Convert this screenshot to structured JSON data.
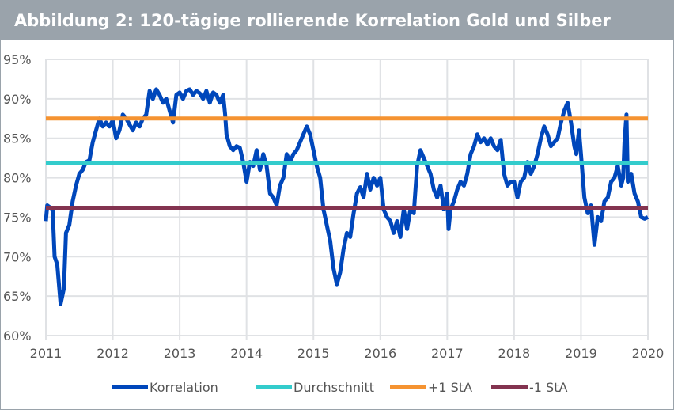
{
  "title": "Abbildung 2: 120-tägige rollierende Korrelation Gold und Silber",
  "chart_data": {
    "type": "line",
    "title": "Abbildung 2: 120-tägige rollierende Korrelation Gold und Silber",
    "xlim": [
      2011,
      2020
    ],
    "ylim": [
      60,
      95
    ],
    "x_ticks": [
      "2011",
      "2012",
      "2013",
      "2014",
      "2015",
      "2016",
      "2017",
      "2018",
      "2019",
      "2020"
    ],
    "y_ticks": [
      "60%",
      "65%",
      "70%",
      "75%",
      "80%",
      "85%",
      "90%",
      "95%"
    ],
    "grid": true,
    "legend_position": "bottom",
    "series": [
      {
        "name": "Korrelation",
        "color": "#0047bb",
        "x": [
          2011.0,
          2011.02,
          2011.1,
          2011.13,
          2011.17,
          2011.22,
          2011.27,
          2011.3,
          2011.35,
          2011.4,
          2011.45,
          2011.5,
          2011.55,
          2011.6,
          2011.65,
          2011.7,
          2011.75,
          2011.8,
          2011.85,
          2011.9,
          2011.95,
          2012.0,
          2012.05,
          2012.1,
          2012.15,
          2012.2,
          2012.3,
          2012.35,
          2012.4,
          2012.45,
          2012.5,
          2012.55,
          2012.6,
          2012.65,
          2012.7,
          2012.75,
          2012.8,
          2012.85,
          2012.9,
          2012.95,
          2013.0,
          2013.05,
          2013.1,
          2013.15,
          2013.2,
          2013.25,
          2013.3,
          2013.35,
          2013.4,
          2013.45,
          2013.5,
          2013.55,
          2013.6,
          2013.65,
          2013.68,
          2013.7,
          2013.75,
          2013.8,
          2013.85,
          2013.9,
          2013.95,
          2014.0,
          2014.05,
          2014.1,
          2014.15,
          2014.2,
          2014.25,
          2014.3,
          2014.35,
          2014.4,
          2014.45,
          2014.5,
          2014.55,
          2014.6,
          2014.65,
          2014.7,
          2014.75,
          2014.8,
          2014.85,
          2014.9,
          2014.95,
          2015.0,
          2015.05,
          2015.1,
          2015.15,
          2015.2,
          2015.25,
          2015.3,
          2015.35,
          2015.4,
          2015.45,
          2015.5,
          2015.55,
          2015.6,
          2015.65,
          2015.7,
          2015.75,
          2015.8,
          2015.85,
          2015.9,
          2015.95,
          2016.0,
          2016.05,
          2016.1,
          2016.15,
          2016.2,
          2016.25,
          2016.3,
          2016.35,
          2016.4,
          2016.45,
          2016.5,
          2016.55,
          2016.6,
          2016.65,
          2016.7,
          2016.75,
          2016.8,
          2016.85,
          2016.9,
          2016.95,
          2017.0,
          2017.02,
          2017.05,
          2017.1,
          2017.15,
          2017.2,
          2017.25,
          2017.3,
          2017.35,
          2017.4,
          2017.45,
          2017.5,
          2017.55,
          2017.6,
          2017.65,
          2017.7,
          2017.75,
          2017.8,
          2017.85,
          2017.9,
          2017.95,
          2018.0,
          2018.05,
          2018.1,
          2018.15,
          2018.2,
          2018.25,
          2018.3,
          2018.35,
          2018.4,
          2018.45,
          2018.5,
          2018.55,
          2018.6,
          2018.65,
          2018.7,
          2018.75,
          2018.8,
          2018.85,
          2018.9,
          2018.93,
          2018.97,
          2019.0,
          2019.05,
          2019.1,
          2019.15,
          2019.2,
          2019.25,
          2019.3,
          2019.35,
          2019.4,
          2019.45,
          2019.5,
          2019.55,
          2019.6,
          2019.63,
          2019.65,
          2019.68,
          2019.7,
          2019.75,
          2019.8,
          2019.85,
          2019.9,
          2019.95,
          2020.0
        ],
        "values": [
          74.5,
          76.5,
          76,
          70,
          69,
          64,
          66,
          73,
          74,
          77,
          79,
          80.5,
          81,
          82,
          82.2,
          84.5,
          86,
          87.5,
          86.5,
          87,
          86.5,
          87.3,
          85,
          86,
          88,
          87.5,
          86,
          87,
          86.5,
          87.5,
          88,
          91,
          90,
          91.2,
          90.5,
          89.5,
          90,
          88.5,
          87,
          90.5,
          90.8,
          90,
          91,
          91.2,
          90.5,
          91,
          90.7,
          90,
          91,
          89.5,
          90.8,
          90.5,
          89.5,
          90.5,
          88,
          85.5,
          84,
          83.5,
          84,
          83.8,
          82,
          79.5,
          82,
          81.5,
          83.5,
          81,
          83,
          81.5,
          78,
          77.5,
          76.5,
          79,
          80,
          83,
          82,
          83,
          83.5,
          84.5,
          85.5,
          86.5,
          85.5,
          83.5,
          81.5,
          80,
          76,
          74,
          72,
          68.5,
          66.5,
          68,
          71,
          73,
          72.5,
          75.5,
          78,
          78.8,
          77.5,
          80.5,
          78.5,
          80,
          79,
          80,
          76,
          75,
          74.5,
          73,
          74.5,
          72.5,
          76,
          73.5,
          76,
          75.5,
          81.5,
          83.5,
          82.5,
          81.5,
          80.5,
          78.5,
          77.5,
          79,
          76,
          78,
          73.5,
          76,
          77,
          78.5,
          79.5,
          79,
          80.5,
          83,
          84,
          85.5,
          84.5,
          85,
          84.2,
          85,
          84,
          83.5,
          84.8,
          80.5,
          79,
          79.5,
          79.5,
          77.5,
          79.5,
          80,
          82,
          80.5,
          81.5,
          83,
          85,
          86.5,
          85.5,
          84,
          84.5,
          85,
          87,
          88.5,
          89.5,
          87,
          84,
          83,
          86,
          83,
          77.5,
          75.5,
          76.5,
          71.5,
          75,
          74.5,
          77,
          77.5,
          79.5,
          80,
          81.5,
          79,
          80,
          84.5,
          88,
          79.5,
          80.5,
          78,
          77,
          75,
          74.8,
          75
        ]
      },
      {
        "name": "Durchschnitt",
        "color": "#33cccc",
        "constant": 81.9
      },
      {
        "name": "+1 StA",
        "color": "#f59331",
        "constant": 87.5
      },
      {
        "name": "-1 StA",
        "color": "#833350",
        "constant": 76.2
      }
    ]
  }
}
